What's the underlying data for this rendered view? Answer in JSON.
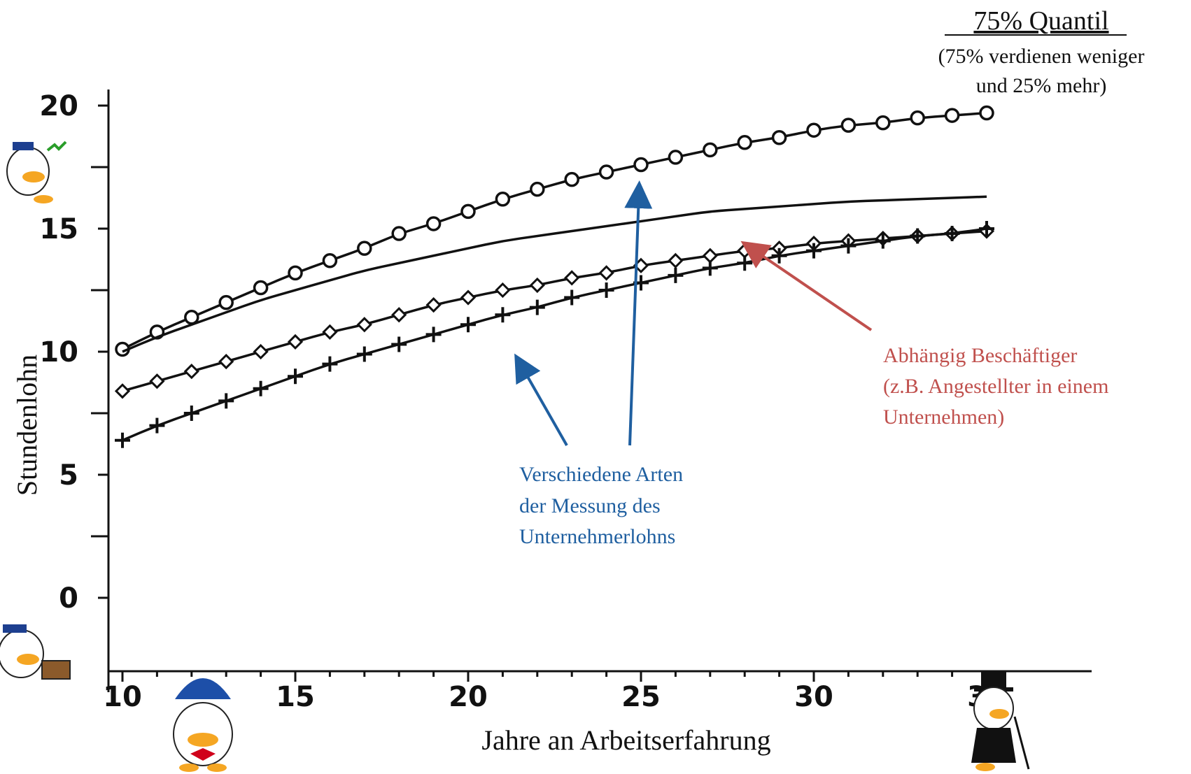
{
  "header": {
    "title": "75% Quantil",
    "subtitle_lines": [
      "(75% verdienen weniger",
      "und 25% mehr)"
    ]
  },
  "colors": {
    "axis": "#111111",
    "series": "#111111",
    "annotation_blue": "#1f5fa0",
    "annotation_red": "#c0504d"
  },
  "annotations": {
    "blue_lines": [
      "Verschiedene Arten",
      "der Messung des",
      "Unternehmerlohns"
    ],
    "red_lines": [
      "Abhängig Beschäftiger",
      "(z.B. Angestellter in einem",
      "Unternehmen)"
    ]
  },
  "decorations": [
    "donald-duck-angry-icon",
    "donald-duck-worried-icon",
    "baby-donald-icon",
    "scrooge-donald-icon"
  ],
  "chart_data": {
    "type": "line",
    "xlabel": "Jahre an Arbeitserfahrung",
    "ylabel": "Stundenlohn",
    "xlim": [
      10,
      35
    ],
    "ylim": [
      0,
      20
    ],
    "x_ticks": [
      10,
      15,
      20,
      25,
      30,
      35
    ],
    "y_ticks": [
      0,
      5,
      10,
      15,
      20
    ],
    "grid": false,
    "x": [
      10,
      11,
      12,
      13,
      14,
      15,
      16,
      17,
      18,
      19,
      20,
      21,
      22,
      23,
      24,
      25,
      26,
      27,
      28,
      29,
      30,
      31,
      32,
      33,
      34,
      35
    ],
    "series": [
      {
        "marker": "circle",
        "values": [
          10.1,
          10.8,
          11.4,
          12.0,
          12.6,
          13.2,
          13.7,
          14.2,
          14.8,
          15.2,
          15.7,
          16.2,
          16.6,
          17.0,
          17.3,
          17.6,
          17.9,
          18.2,
          18.5,
          18.7,
          19.0,
          19.2,
          19.3,
          19.5,
          19.6,
          19.7
        ]
      },
      {
        "marker": "none",
        "values": [
          10.0,
          10.6,
          11.1,
          11.6,
          12.1,
          12.5,
          12.9,
          13.3,
          13.6,
          13.9,
          14.2,
          14.5,
          14.7,
          14.9,
          15.1,
          15.3,
          15.5,
          15.7,
          15.8,
          15.9,
          16.0,
          16.1,
          16.15,
          16.2,
          16.25,
          16.3
        ]
      },
      {
        "marker": "diamond",
        "values": [
          8.4,
          8.8,
          9.2,
          9.6,
          10.0,
          10.4,
          10.8,
          11.1,
          11.5,
          11.9,
          12.2,
          12.5,
          12.7,
          13.0,
          13.2,
          13.5,
          13.7,
          13.9,
          14.1,
          14.2,
          14.4,
          14.5,
          14.6,
          14.7,
          14.8,
          14.9
        ]
      },
      {
        "marker": "plus",
        "values": [
          6.4,
          7.0,
          7.5,
          8.0,
          8.5,
          9.0,
          9.5,
          9.9,
          10.3,
          10.7,
          11.1,
          11.5,
          11.8,
          12.2,
          12.5,
          12.8,
          13.1,
          13.4,
          13.6,
          13.9,
          14.1,
          14.3,
          14.5,
          14.7,
          14.8,
          15.0
        ]
      }
    ]
  }
}
